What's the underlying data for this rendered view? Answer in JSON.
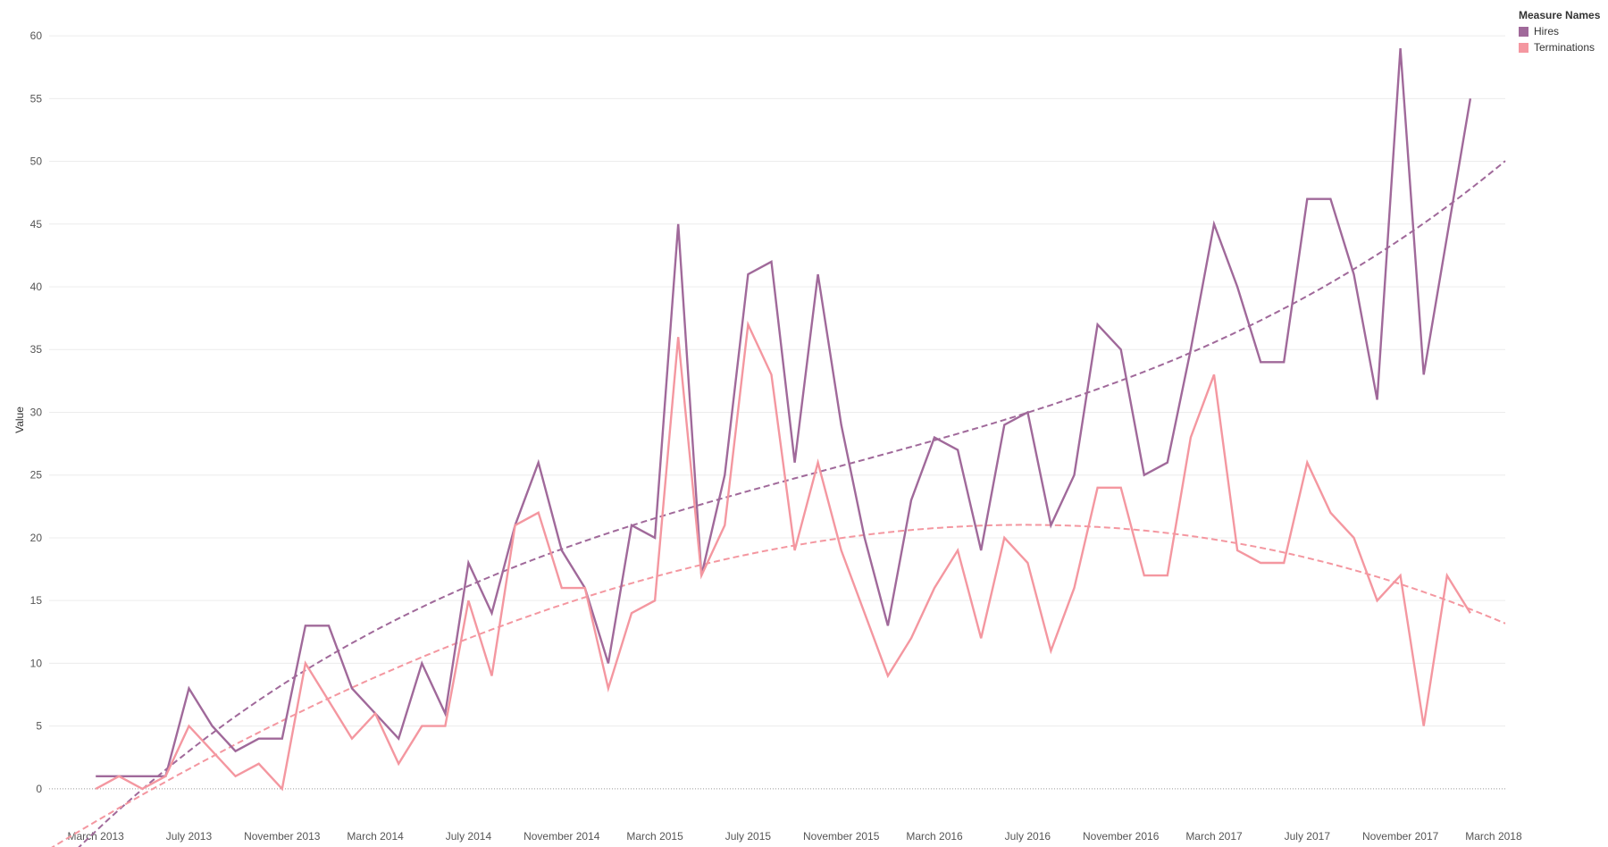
{
  "chart_data": {
    "type": "line",
    "ylabel": "Value",
    "ylim": [
      -3,
      62
    ],
    "yticks": [
      0,
      5,
      10,
      15,
      20,
      25,
      30,
      35,
      40,
      45,
      50,
      55,
      60
    ],
    "x_ticks": [
      "March 2013",
      "July 2013",
      "November 2013",
      "March 2014",
      "July 2014",
      "November 2014",
      "March 2015",
      "July 2015",
      "November 2015",
      "March 2016",
      "July 2016",
      "November 2016",
      "March 2017",
      "July 2017",
      "November 2017",
      "March 2018"
    ],
    "x_start": "January 2013",
    "grid": "horizontal",
    "zero_line": true,
    "legend": {
      "title": "Measure Names",
      "placement": "top-right",
      "entries": [
        {
          "name": "Hires",
          "color": "#A0699A"
        },
        {
          "name": "Terminations",
          "color": "#F497A0"
        }
      ]
    },
    "trend_lines": "polynomial dashed",
    "series": [
      {
        "name": "Hires",
        "color": "#A0699A",
        "start": "March 2013",
        "values": [
          1,
          1,
          1,
          1,
          8,
          5,
          3,
          4,
          4,
          13,
          13,
          8,
          6,
          4,
          10,
          6,
          18,
          14,
          21,
          26,
          19,
          16,
          10,
          21,
          20,
          45,
          17,
          25,
          41,
          42,
          26,
          41,
          29,
          20,
          13,
          23,
          28,
          27,
          19,
          29,
          30,
          21,
          25,
          37,
          35,
          25,
          26,
          35,
          45,
          40,
          34,
          34,
          47,
          47,
          41,
          31,
          59,
          33,
          44,
          55
        ]
      },
      {
        "name": "Terminations",
        "color": "#F497A0",
        "start": "March 2013",
        "values": [
          0,
          1,
          0,
          1,
          5,
          3,
          1,
          2,
          0,
          10,
          7,
          4,
          6,
          2,
          5,
          5,
          15,
          9,
          21,
          22,
          16,
          16,
          8,
          14,
          15,
          36,
          17,
          21,
          37,
          33,
          19,
          26,
          19,
          14,
          9,
          12,
          16,
          19,
          12,
          20,
          18,
          11,
          16,
          24,
          24,
          17,
          17,
          28,
          33,
          19,
          18,
          18,
          26,
          22,
          20,
          15,
          17,
          5,
          17,
          14
        ]
      }
    ]
  }
}
